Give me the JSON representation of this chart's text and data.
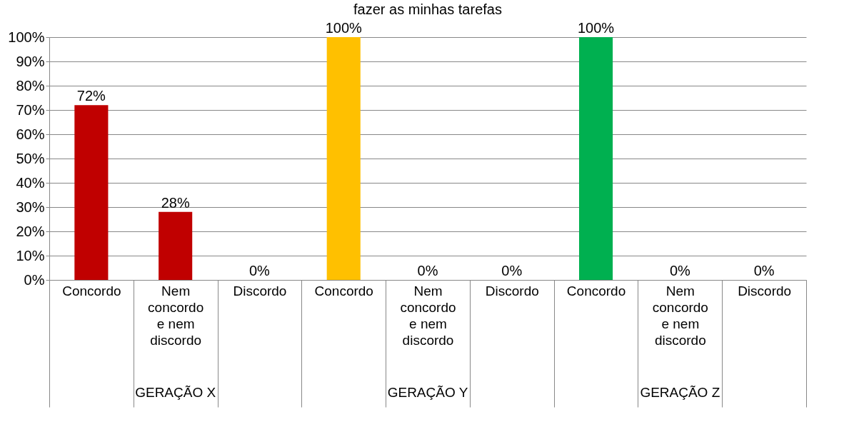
{
  "chart_data": {
    "type": "bar",
    "title": "fazer as minhas tarefas",
    "categories": [
      "Concordo",
      "Nem concordo e nem discordo",
      "Discordo",
      "Concordo",
      "Nem concordo e nem discordo",
      "Discordo",
      "Concordo",
      "Nem concordo e nem discordo",
      "Discordo"
    ],
    "values": [
      72,
      28,
      0,
      100,
      0,
      0,
      100,
      0,
      0
    ],
    "colors": [
      "#c00000",
      "#c00000",
      "#c00000",
      "#ffc000",
      "#ffc000",
      "#ffc000",
      "#00b050",
      "#00b050",
      "#00b050"
    ],
    "value_labels": [
      "72%",
      "28%",
      "0%",
      "100%",
      "0%",
      "0%",
      "100%",
      "0%",
      "0%"
    ],
    "annotations": [
      "GERAÇÃO X",
      "GERAÇÃO Y",
      "GERAÇÃO Z"
    ],
    "ylim": [
      0,
      100
    ],
    "yticks": [
      {
        "value": 0,
        "label": "0%"
      },
      {
        "value": 10,
        "label": "10%"
      },
      {
        "value": 20,
        "label": "20%"
      },
      {
        "value": 30,
        "label": "30%"
      },
      {
        "value": 40,
        "label": "40%"
      },
      {
        "value": 50,
        "label": "50%"
      },
      {
        "value": 60,
        "label": "60%"
      },
      {
        "value": 70,
        "label": "70%"
      },
      {
        "value": 80,
        "label": "80%"
      },
      {
        "value": 90,
        "label": "90%"
      },
      {
        "value": 100,
        "label": "100%"
      }
    ],
    "grid": "y"
  }
}
